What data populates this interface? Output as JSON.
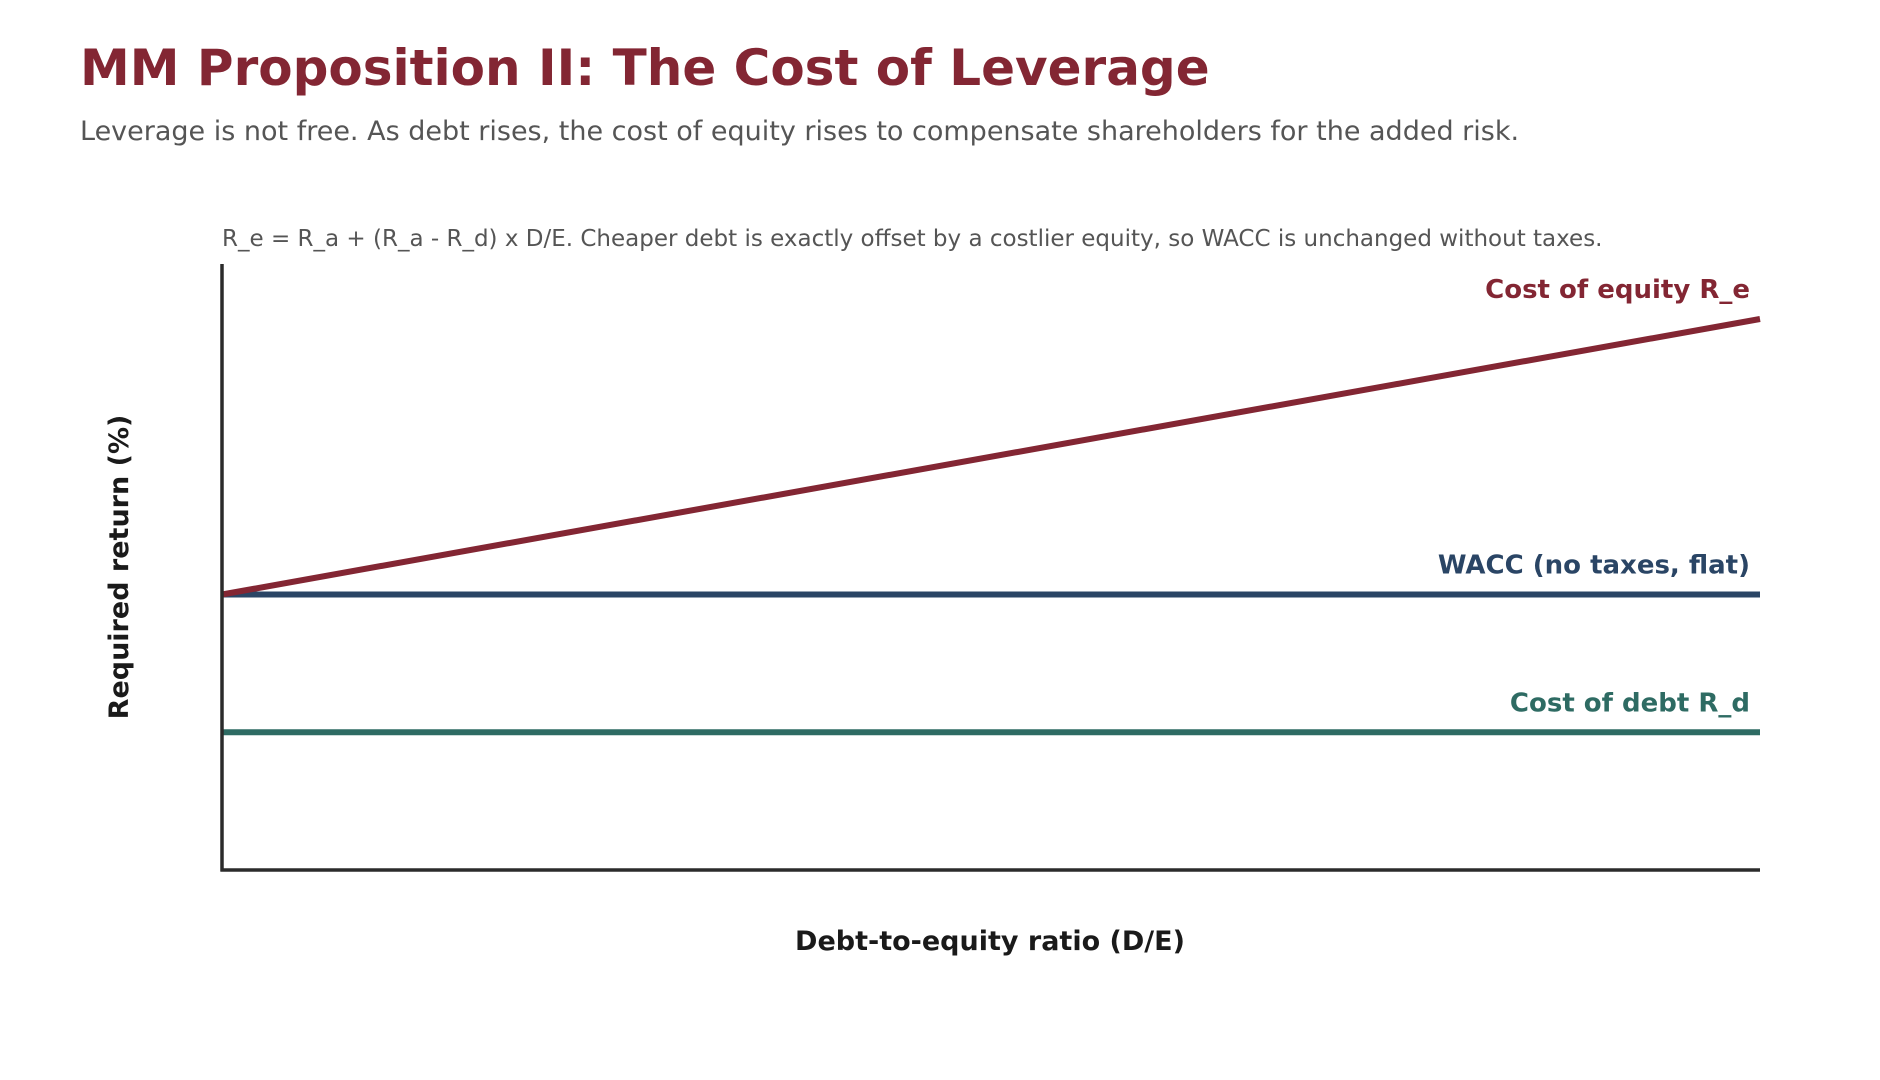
{
  "chart_data": {
    "type": "line",
    "title": "MM Proposition II: The Cost of Leverage",
    "subtitle": "Leverage is not free. As debt rises, the cost of equity rises to compensate shareholders for the added risk.",
    "annotation": "R_e = R_a + (R_a - R_d) x D/E. Cheaper debt is exactly offset by a costlier equity, so WACC is unchanged without taxes.",
    "xlabel": "Debt-to-equity ratio (D/E)",
    "ylabel": "Required return (%)",
    "xlim": [
      0,
      1
    ],
    "ylim": [
      0,
      1
    ],
    "ticks_shown": false,
    "grid": false,
    "legend": "inline labels at right end of each line",
    "series": [
      {
        "name": "Cost of equity R_e",
        "color": "#832633",
        "x": [
          0,
          1
        ],
        "y": [
          0.5,
          1.0
        ]
      },
      {
        "name": "WACC (no taxes, flat)",
        "color": "#2a4565",
        "x": [
          0,
          1
        ],
        "y": [
          0.5,
          0.5
        ]
      },
      {
        "name": "Cost of debt R_d",
        "color": "#2e6b63",
        "x": [
          0,
          1
        ],
        "y": [
          0.25,
          0.25
        ]
      }
    ]
  },
  "colors": {
    "title": "#832633",
    "text_muted": "#555555",
    "axis": "#2b2b2b"
  }
}
